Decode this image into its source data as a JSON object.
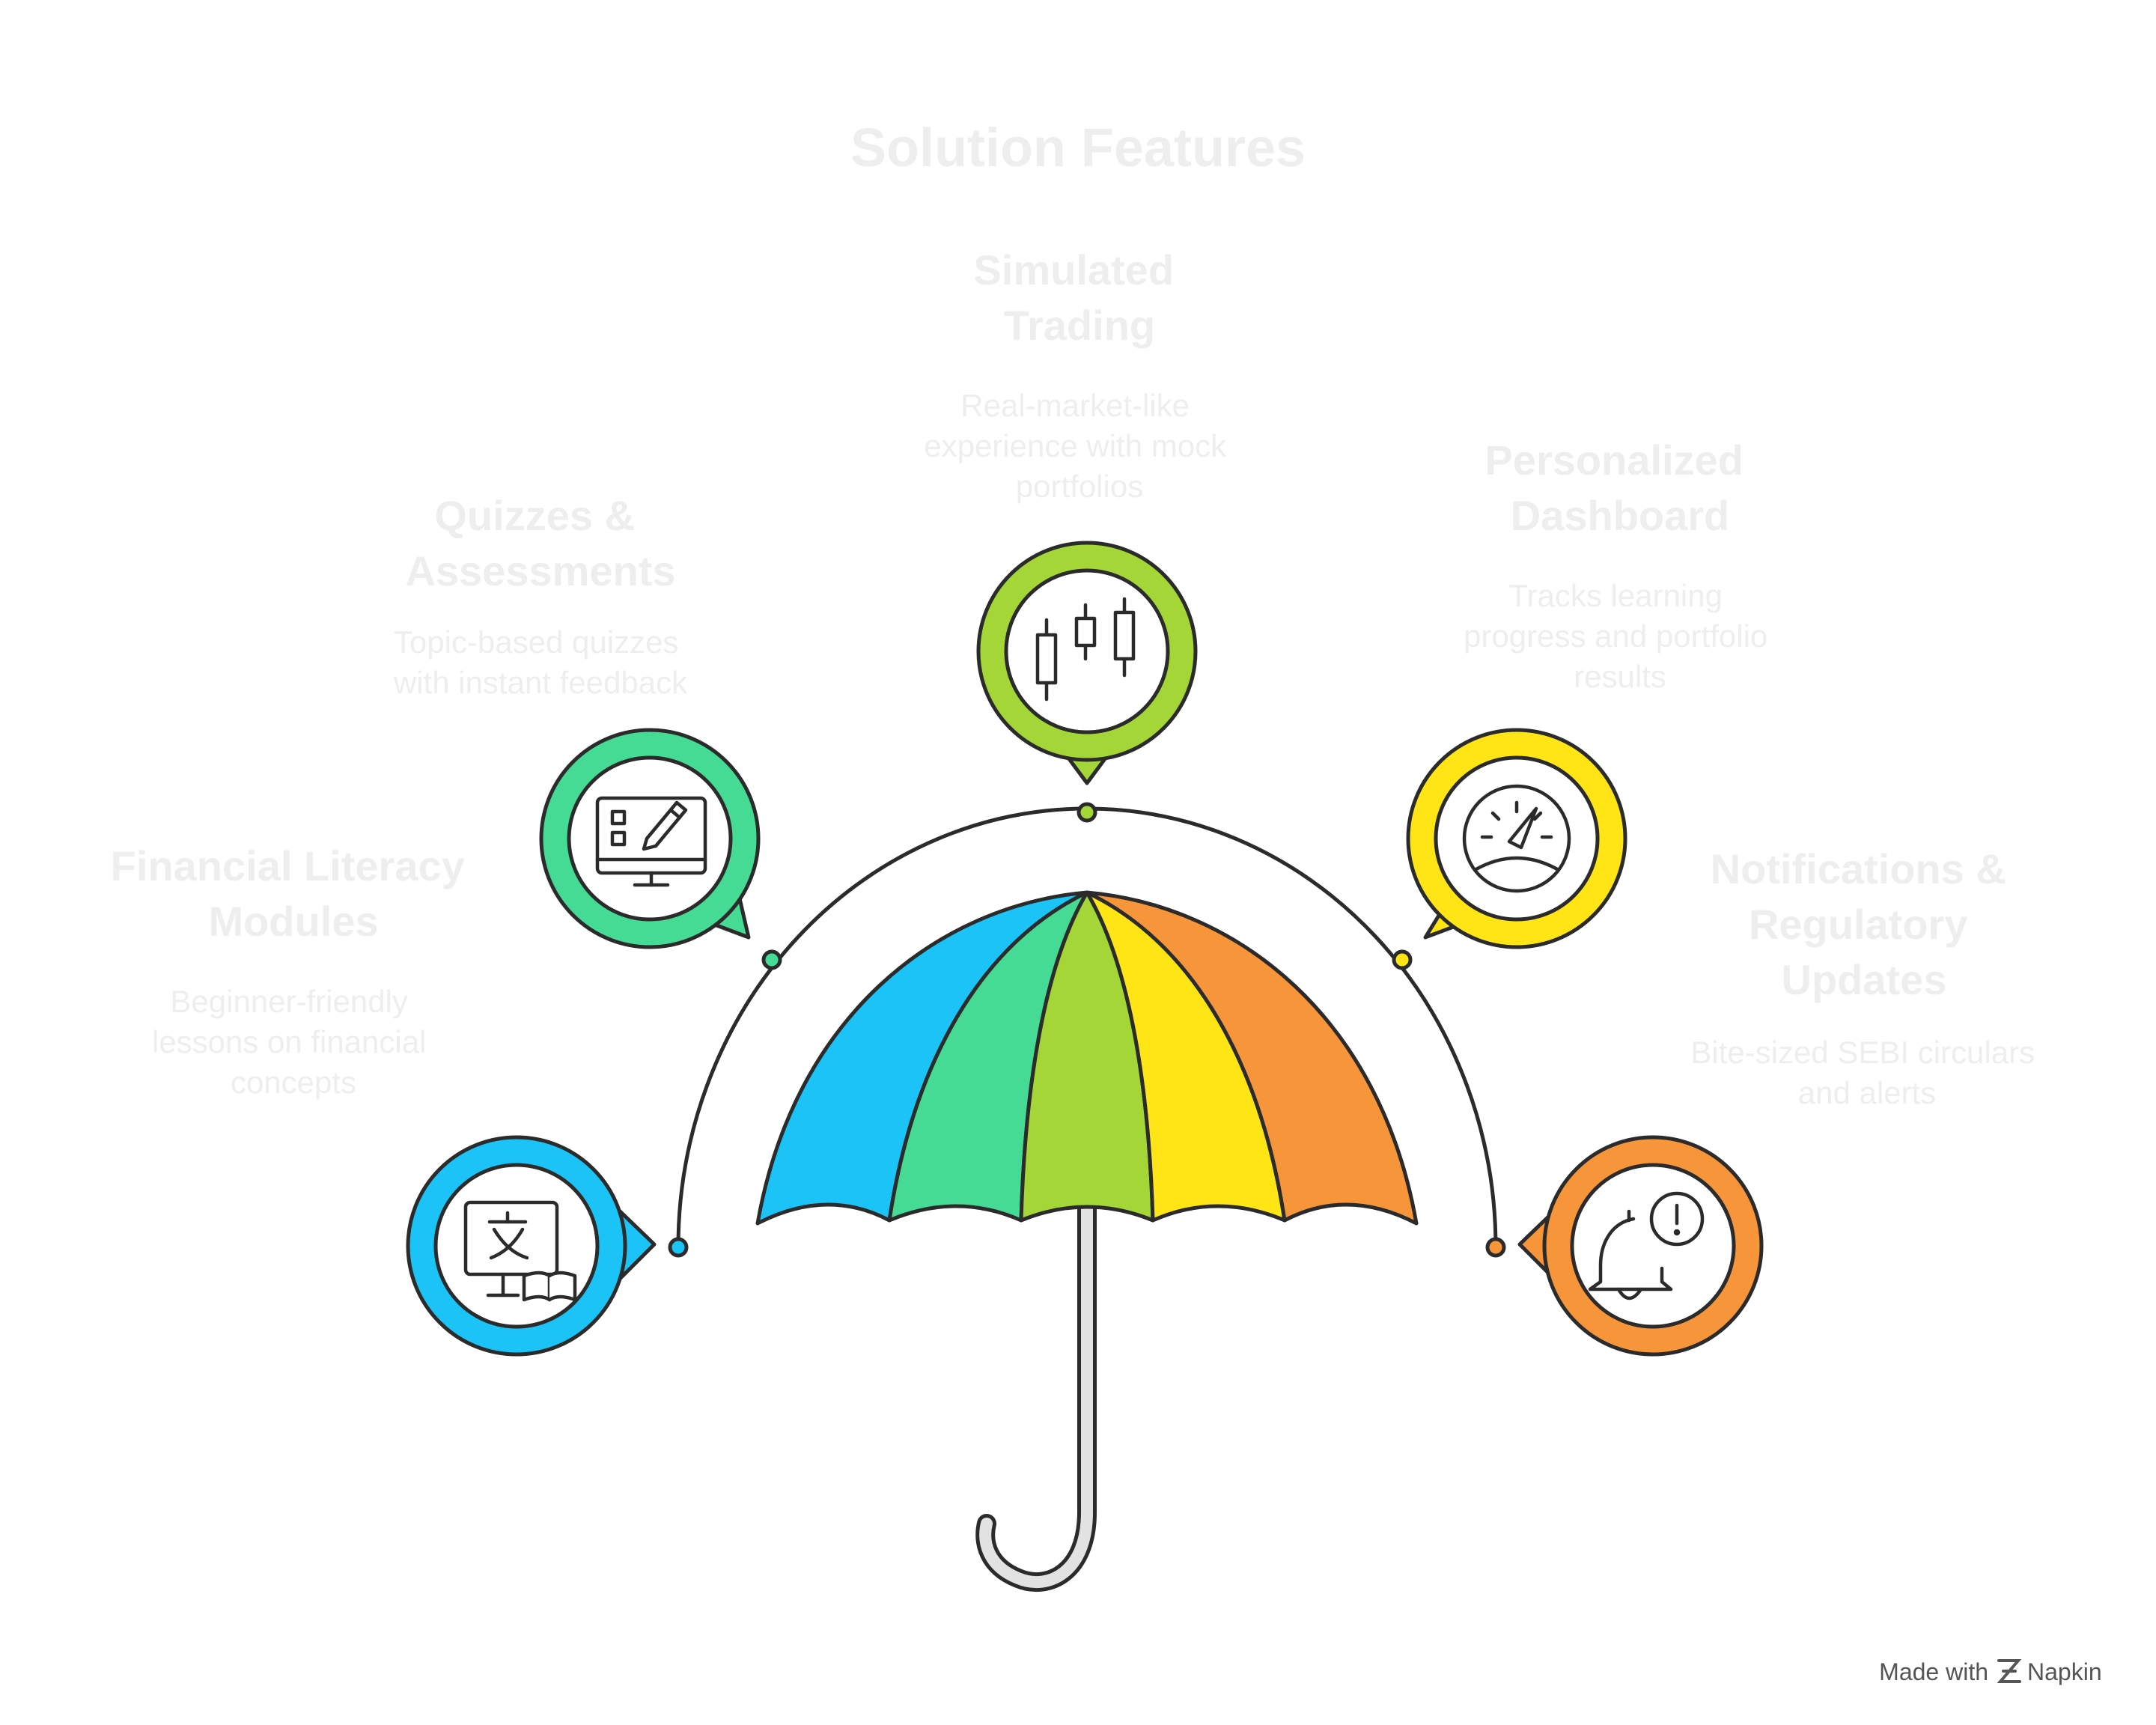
{
  "title": "Solution Features",
  "features": [
    {
      "title_lines": [
        "Financial Literacy",
        "Modules"
      ],
      "desc_lines": [
        "Beginner-friendly",
        "lessons on financial",
        "concepts"
      ],
      "color": "#1BC3F7",
      "icon": "translate-book-icon"
    },
    {
      "title_lines": [
        "Quizzes &",
        "Assessments"
      ],
      "desc_lines": [
        "Topic-based quizzes",
        "with instant feedback"
      ],
      "color": "#45DB94",
      "icon": "quiz-monitor-icon"
    },
    {
      "title_lines": [
        "Simulated",
        "Trading"
      ],
      "desc_lines": [
        "Real-market-like",
        "experience with mock",
        "portfolios"
      ],
      "color": "#A3D636",
      "icon": "candlestick-chart-icon"
    },
    {
      "title_lines": [
        "Personalized",
        "Dashboard"
      ],
      "desc_lines": [
        "Tracks learning",
        "progress and portfolio",
        "results"
      ],
      "color": "#FFE516",
      "icon": "speedometer-icon"
    },
    {
      "title_lines": [
        "Notifications &",
        "Regulatory",
        "Updates"
      ],
      "desc_lines": [
        "Bite-sized SEBI circulars",
        "and alerts"
      ],
      "color": "#F7953A",
      "icon": "bell-alert-icon"
    }
  ],
  "umbrella": {
    "panel_colors": [
      "#1BC3F7",
      "#45DB94",
      "#A3D636",
      "#FFE516",
      "#F7953A"
    ],
    "handle_color": "#E2E2E2"
  },
  "branding": {
    "made_with": "Made with",
    "brand": "Napkin"
  }
}
